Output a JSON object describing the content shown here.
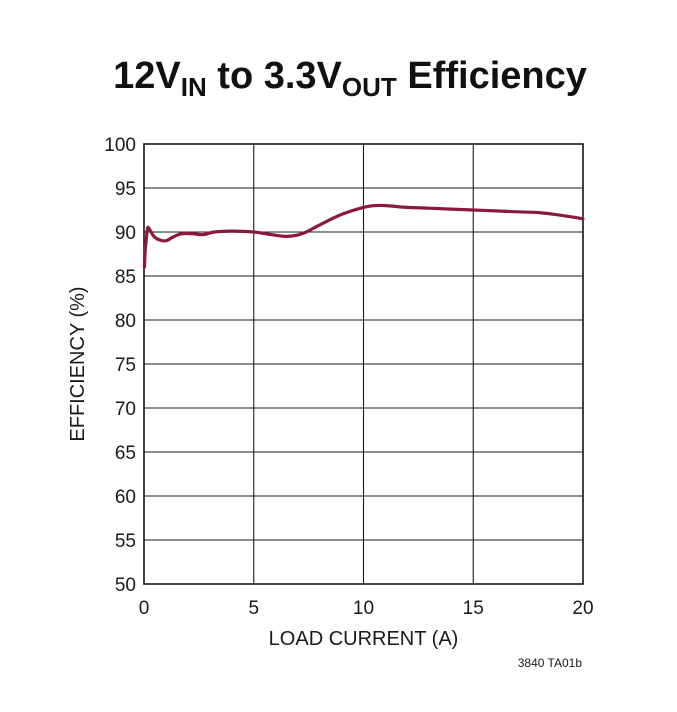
{
  "chart_data": {
    "type": "line",
    "title": {
      "part1": "12V",
      "sub1": "IN",
      "part2": " to 3.3V",
      "sub2": "OUT",
      "part3": " Efficiency"
    },
    "xlabel": "LOAD CURRENT (A)",
    "ylabel": "EFFICIENCY (%)",
    "xlim": [
      0,
      20
    ],
    "ylim": [
      50,
      100
    ],
    "x_ticks": [
      0,
      5,
      10,
      15,
      20
    ],
    "y_ticks": [
      50,
      55,
      60,
      65,
      70,
      75,
      80,
      85,
      90,
      95,
      100
    ],
    "grid": true,
    "line_color": "#8b1a3a",
    "series": [
      {
        "x": [
          0.02,
          0.05,
          0.08,
          0.12,
          0.16,
          0.2,
          0.3,
          0.45,
          0.7,
          1.0,
          1.3,
          1.7,
          2.2,
          2.7,
          3.2,
          4.0,
          5.0,
          5.8,
          6.5,
          7.2,
          8.0,
          9.0,
          10.0,
          10.5,
          11.0,
          12.0,
          13.0,
          14.0,
          15.0,
          16.0,
          17.0,
          18.0,
          19.0,
          20.0
        ],
        "y": [
          86.0,
          87.8,
          88.6,
          89.5,
          90.4,
          90.5,
          90.1,
          89.5,
          89.1,
          89.0,
          89.4,
          89.8,
          89.8,
          89.7,
          90.0,
          90.1,
          90.0,
          89.7,
          89.5,
          89.8,
          90.8,
          92.0,
          92.8,
          93.0,
          93.0,
          92.8,
          92.7,
          92.6,
          92.5,
          92.4,
          92.3,
          92.2,
          91.9,
          91.5
        ]
      }
    ]
  },
  "footnote": "3840 TA01b"
}
